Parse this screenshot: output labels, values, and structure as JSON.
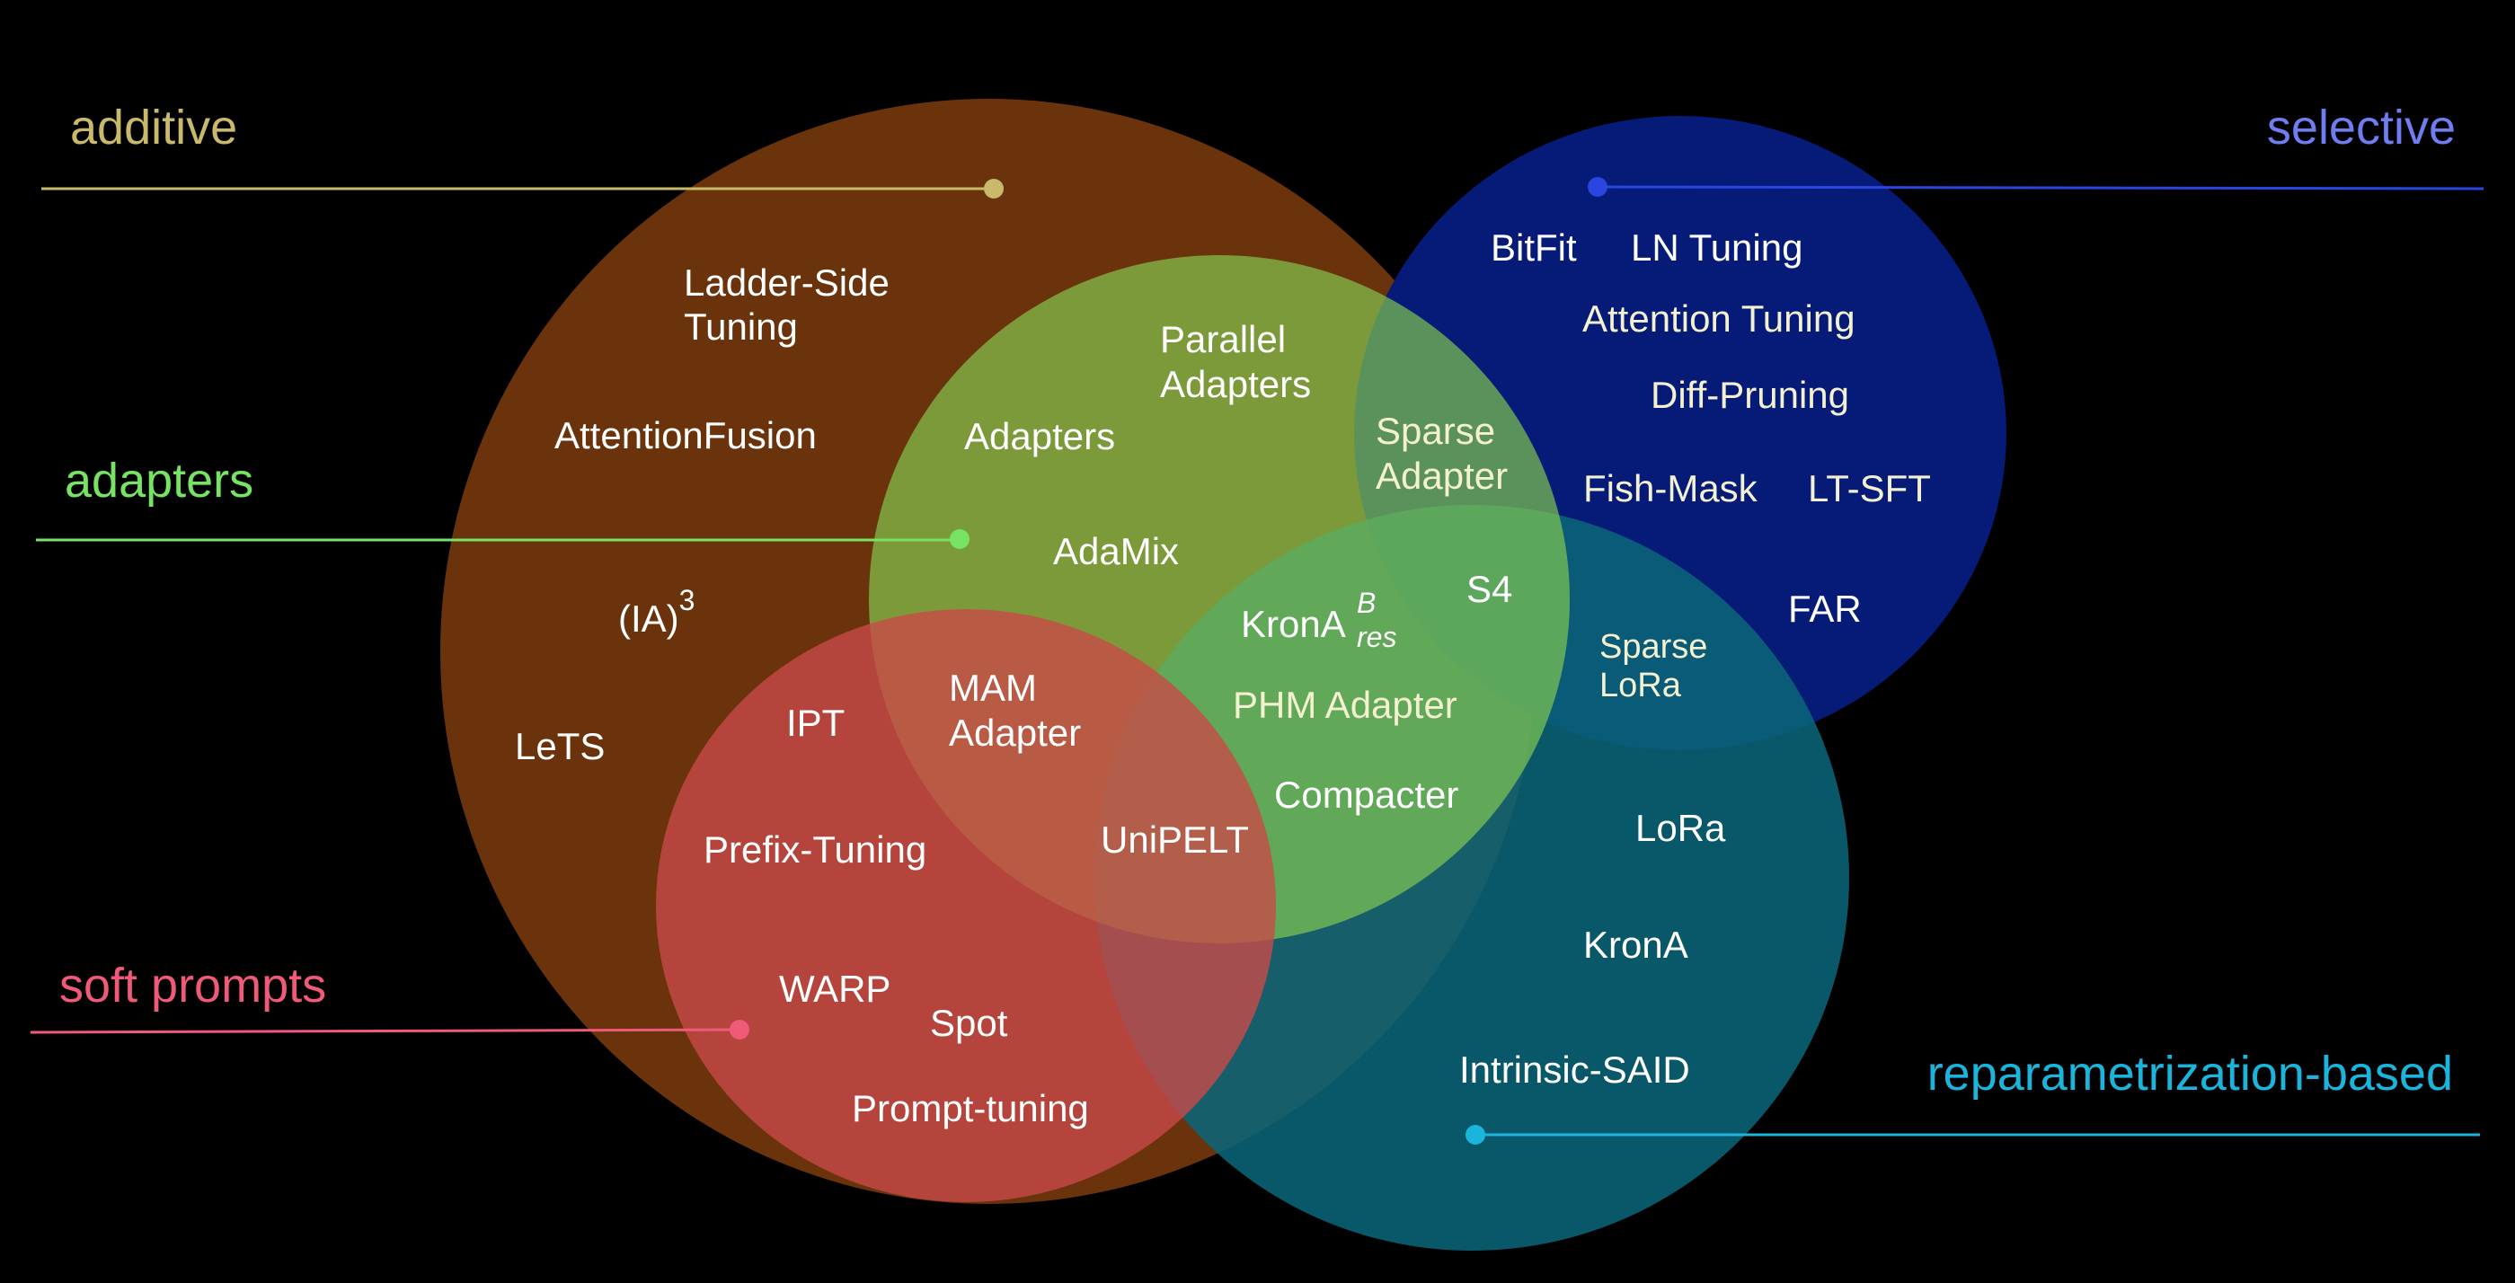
{
  "categories": {
    "additive": {
      "label": "additive",
      "color": "#c8ba6a"
    },
    "selective": {
      "label": "selective",
      "color": "#6f7df0"
    },
    "adapters": {
      "label": "adapters",
      "color": "#77e362"
    },
    "soft_prompts": {
      "label": "soft prompts",
      "color": "#ef5a78"
    },
    "reparametrization": {
      "label": "reparametrization-based",
      "color": "#1ab4dc"
    }
  },
  "regions": {
    "additive": {
      "fill": "#6a330c"
    },
    "selective": {
      "fill": "#061a78"
    },
    "adapters": {
      "fill": "#84cc50"
    },
    "soft_prompts": {
      "fill": "#c84a48"
    },
    "reparametrization": {
      "fill": "#0a6478"
    }
  },
  "methods": {
    "ladder_side_1": "Ladder-Side",
    "ladder_side_2": "Tuning",
    "attention_fusion": "AttentionFusion",
    "ia3_base": "(IA)",
    "ia3_sup": "3",
    "lets": "LeTS",
    "parallel_adapters_1": "Parallel",
    "parallel_adapters_2": "Adapters",
    "adapters": "Adapters",
    "adamix": "AdaMix",
    "sparse_adapter_1": "Sparse",
    "sparse_adapter_2": "Adapter",
    "s4": "S4",
    "krona_res_base": "KronA",
    "krona_res_sup": "B",
    "krona_res_sub": "res",
    "phm_adapter": "PHM Adapter",
    "compacter": "Compacter",
    "mam_adapter_1": "MAM",
    "mam_adapter_2": "Adapter",
    "unipelt": "UniPELT",
    "ipt": "IPT",
    "prefix_tuning": "Prefix-Tuning",
    "warp": "WARP",
    "spot": "Spot",
    "prompt_tuning": "Prompt-tuning",
    "bitfit": "BitFit",
    "ln_tuning": "LN Tuning",
    "attention_tuning": "Attention Tuning",
    "diff_pruning": "Diff-Pruning",
    "fish_mask": "Fish-Mask",
    "lt_sft": "LT-SFT",
    "far": "FAR",
    "sparse_lora_1": "Sparse",
    "sparse_lora_2": "LoRa",
    "lora": "LoRa",
    "krona": "KronA",
    "intrinsic_said": "Intrinsic-SAID"
  }
}
